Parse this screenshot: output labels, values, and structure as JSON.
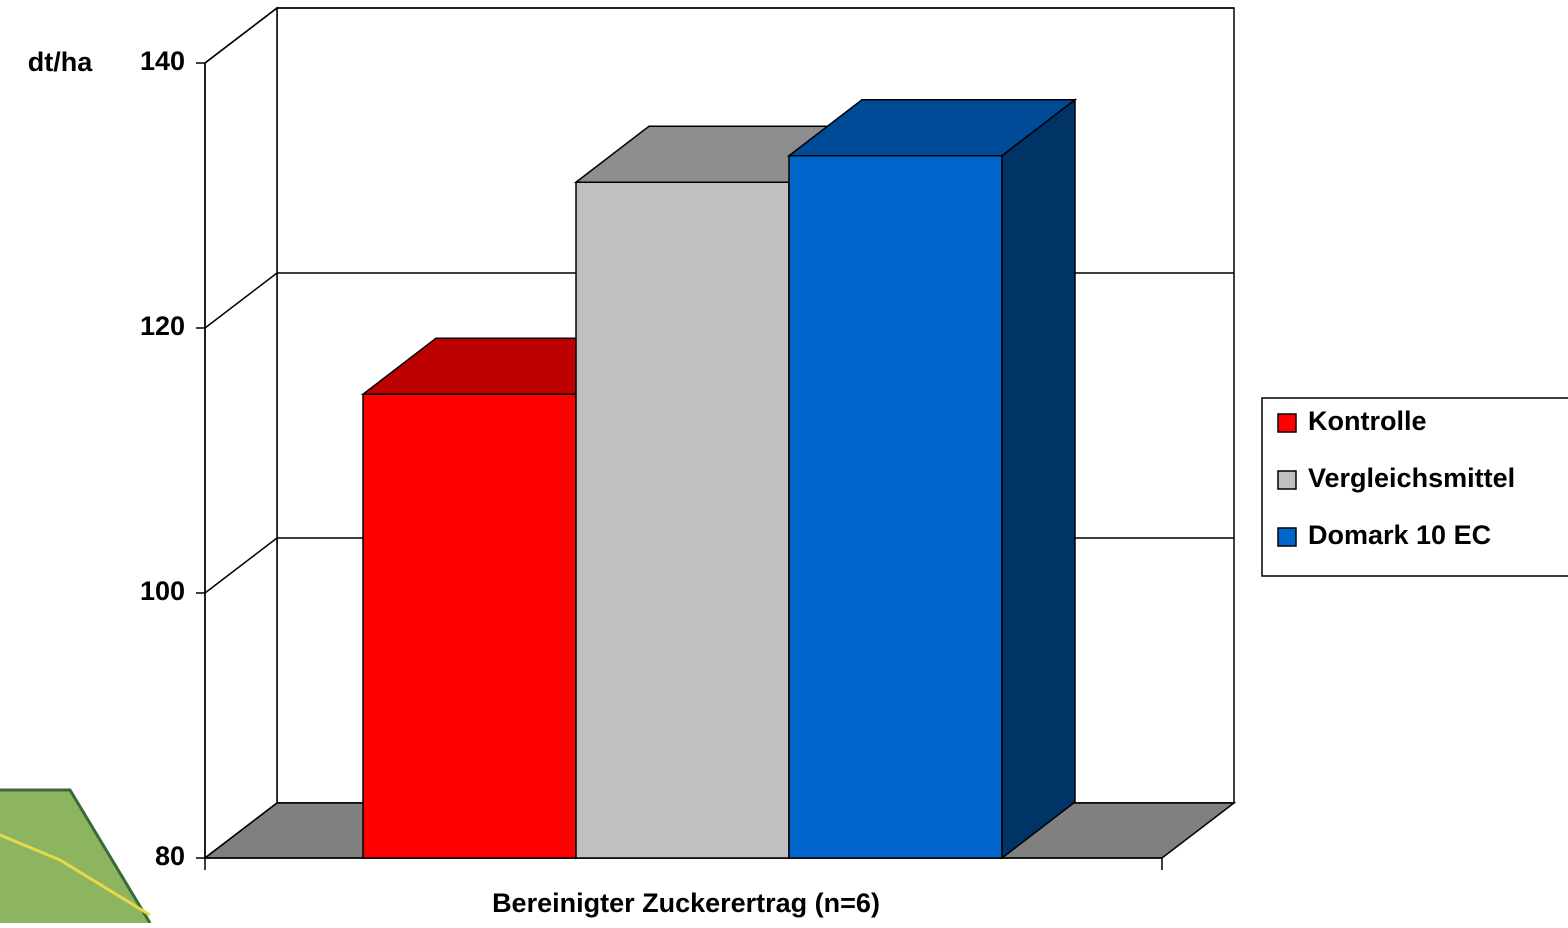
{
  "chart_data": {
    "type": "bar3d",
    "y_label": "dt/ha",
    "categories": [
      "Bereinigter Zuckerertrag (n=6)"
    ],
    "series": [
      {
        "name": "Kontrolle",
        "color": "#ff0000",
        "values": [
          115
        ]
      },
      {
        "name": "Vergleichsmittel",
        "color": "#c0c0c0",
        "values": [
          131
        ]
      },
      {
        "name": "Domark 10 EC",
        "color": "#0066cc",
        "values": [
          133
        ]
      }
    ],
    "ylim": [
      80,
      140
    ],
    "yticks": [
      80,
      100,
      120,
      140
    ],
    "grid": true,
    "legend": "right"
  }
}
